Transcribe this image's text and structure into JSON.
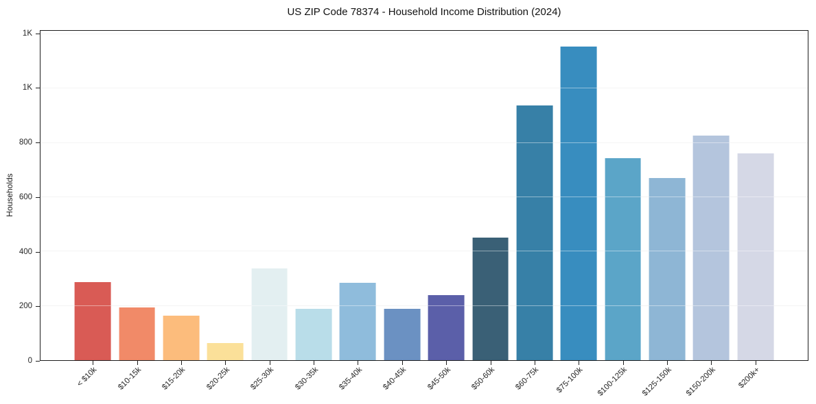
{
  "title": "US ZIP Code 78374 - Household Income Distribution (2024)",
  "chart_data": {
    "type": "bar",
    "title": "US ZIP Code 78374 - Household Income Distribution (2024)",
    "xlabel": "",
    "ylabel": "Households",
    "categories": [
      "< $10k",
      "$10-15k",
      "$15-20k",
      "$20-25k",
      "$25-30k",
      "$30-35k",
      "$35-40k",
      "$40-45k",
      "$45-50k",
      "$50-60k",
      "$60-75k",
      "$75-100k",
      "$100-125k",
      "$125-150k",
      "$150-200k",
      "$200k+"
    ],
    "values": [
      288,
      195,
      165,
      63,
      337,
      190,
      286,
      190,
      239,
      450,
      938,
      1153,
      743,
      670,
      827,
      760
    ],
    "bar_colors": [
      "#d95b55",
      "#f18a68",
      "#fcbc7c",
      "#fbe099",
      "#e3eff1",
      "#b9dde9",
      "#8fbcdc",
      "#6b91c2",
      "#5b5fa9",
      "#3a6076",
      "#3780a7",
      "#388dbf",
      "#5ba5c8",
      "#8eb6d5",
      "#b4c5dd",
      "#d5d8e6"
    ],
    "ylim": [
      0,
      1212
    ],
    "yticks": [
      {
        "value": 0,
        "label": "0"
      },
      {
        "value": 200,
        "label": "200"
      },
      {
        "value": 400,
        "label": "400"
      },
      {
        "value": 600,
        "label": "600"
      },
      {
        "value": 800,
        "label": "800"
      },
      {
        "value": 1000,
        "label": "1K"
      },
      {
        "value": 1200,
        "label": "1K"
      }
    ],
    "grid": "horizontal",
    "legend": "none",
    "axis_color": "#1c1c1c",
    "gridline_color": "#ececec"
  }
}
